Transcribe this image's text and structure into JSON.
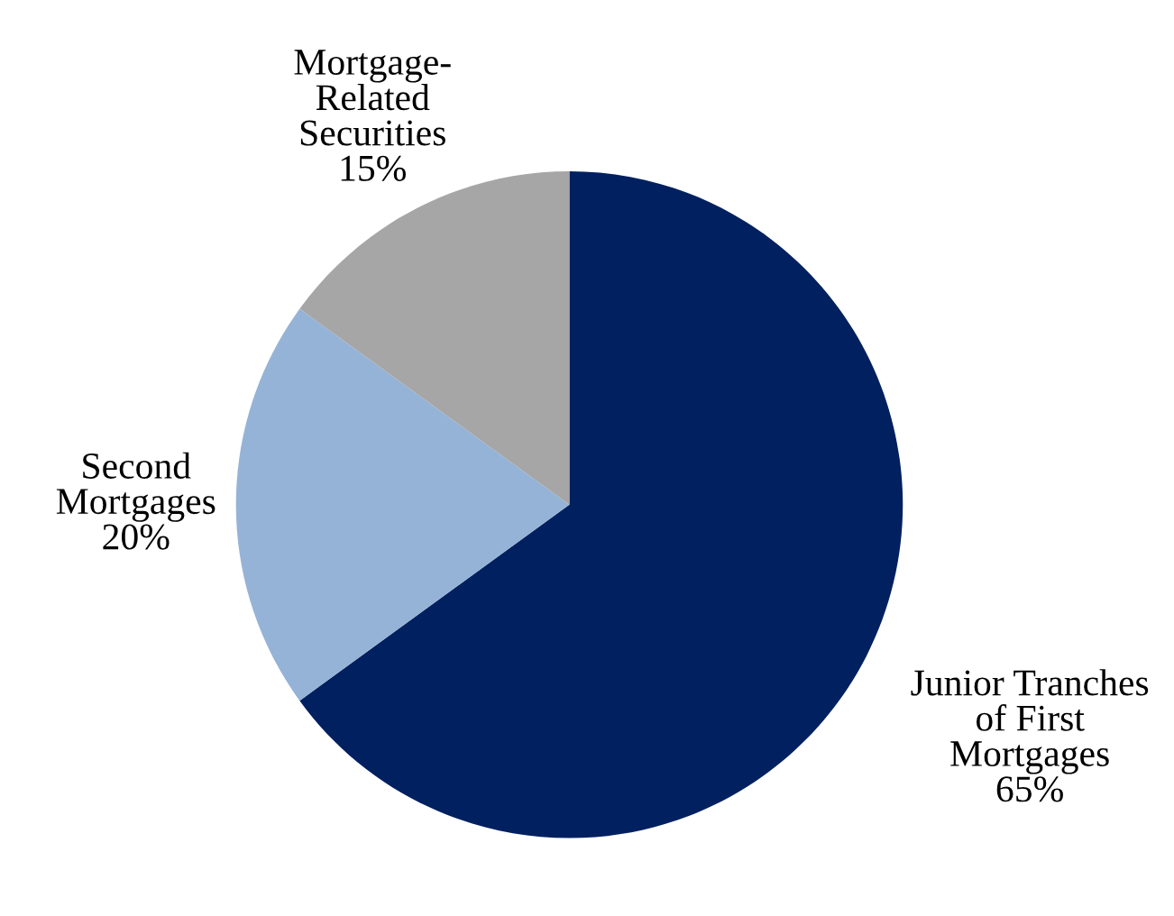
{
  "chart_data": {
    "type": "pie",
    "categories": [
      "Junior Tranches\nof First\nMortgages",
      "Second\nMortgages",
      "Mortgage-\nRelated\nSecurities"
    ],
    "values": [
      65,
      20,
      15
    ],
    "colors": [
      "#002060",
      "#95b3d7",
      "#a6a6a6"
    ],
    "value_labels": [
      "65%",
      "20%",
      "15%"
    ]
  }
}
